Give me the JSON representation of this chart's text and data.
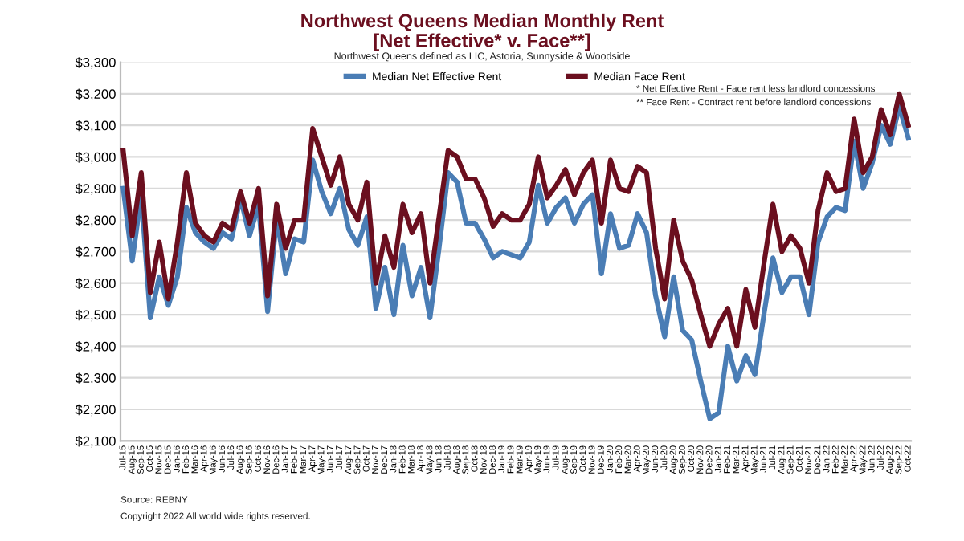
{
  "chart_data": {
    "type": "line",
    "title": "Northwest Queens Median Monthly Rent\n[Net Effective* v. Face**]",
    "subtitle": "Northwest Queens defined as LIC, Astoria, Sunnyside & Woodside",
    "categories": [
      "Jul-15",
      "Aug-15",
      "Sep-15",
      "Oct-15",
      "Nov-15",
      "Dec-15",
      "Jan-16",
      "Feb-16",
      "Mar-16",
      "Apr-16",
      "May-16",
      "Jun-16",
      "Jul-16",
      "Aug-16",
      "Sep-16",
      "Oct-16",
      "Nov-16",
      "Dec-16",
      "Jan-17",
      "Feb-17",
      "Mar-17",
      "Apr-17",
      "May-17",
      "Jun-17",
      "Jul-17",
      "Aug-17",
      "Sep-17",
      "Oct-17",
      "Nov-17",
      "Dec-17",
      "Jan-18",
      "Feb-18",
      "Mar-18",
      "Apr-18",
      "May-18",
      "Jun-18",
      "Jul-18",
      "Aug-18",
      "Sep-18",
      "Oct-18",
      "Nov-18",
      "Dec-18",
      "Jan-19",
      "Feb-19",
      "Mar-19",
      "Apr-19",
      "May-19",
      "Jun-19",
      "Jul-19",
      "Aug-19",
      "Sep-19",
      "Oct-19",
      "Nov-19",
      "Dec-19",
      "Jan-20",
      "Feb-20",
      "Mar-20",
      "Apr-20",
      "May-20",
      "Jun-20",
      "Jul-20",
      "Aug-20",
      "Sep-20",
      "Oct-20",
      "Nov-20",
      "Dec-20",
      "Jan-21",
      "Feb-21",
      "Mar-21",
      "Apr-21",
      "May-21",
      "Jun-21",
      "Jul-21",
      "Aug-21",
      "Sep-21",
      "Oct-21",
      "Nov-21",
      "Dec-21",
      "Jan-22",
      "Feb-22",
      "Mar-22",
      "Apr-22",
      "May-22",
      "Jun-22",
      "Jul-22",
      "Aug-22",
      "Sep-22",
      "Oct-22"
    ],
    "series": [
      {
        "name": "Median Net Effective Rent",
        "color": "#4a7db5",
        "values": [
          2900,
          2670,
          2880,
          2490,
          2620,
          2530,
          2620,
          2840,
          2760,
          2730,
          2710,
          2760,
          2740,
          2870,
          2750,
          2850,
          2510,
          2810,
          2630,
          2740,
          2730,
          2990,
          2890,
          2820,
          2900,
          2770,
          2720,
          2810,
          2520,
          2650,
          2500,
          2720,
          2560,
          2650,
          2490,
          2710,
          2950,
          2920,
          2790,
          2790,
          2740,
          2680,
          2700,
          2690,
          2680,
          2730,
          2910,
          2790,
          2840,
          2870,
          2790,
          2850,
          2880,
          2630,
          2820,
          2710,
          2720,
          2820,
          2760,
          2560,
          2430,
          2620,
          2450,
          2420,
          2290,
          2170,
          2190,
          2400,
          2290,
          2370,
          2310,
          2500,
          2680,
          2570,
          2620,
          2620,
          2500,
          2730,
          2810,
          2840,
          2830,
          3050,
          2900,
          2980,
          3100,
          3040,
          3160,
          3060
        ]
      },
      {
        "name": "Median Face Rent",
        "color": "#6b0f1f",
        "values": [
          3020,
          2750,
          2950,
          2570,
          2730,
          2550,
          2730,
          2950,
          2790,
          2750,
          2730,
          2790,
          2770,
          2890,
          2790,
          2900,
          2560,
          2850,
          2710,
          2800,
          2800,
          3090,
          3000,
          2910,
          3000,
          2850,
          2800,
          2920,
          2600,
          2750,
          2650,
          2850,
          2760,
          2820,
          2600,
          2810,
          3020,
          3000,
          2930,
          2930,
          2870,
          2780,
          2820,
          2800,
          2800,
          2850,
          3000,
          2870,
          2910,
          2960,
          2880,
          2950,
          2990,
          2790,
          2990,
          2900,
          2890,
          2970,
          2950,
          2710,
          2550,
          2800,
          2670,
          2610,
          2500,
          2400,
          2470,
          2520,
          2400,
          2580,
          2460,
          2660,
          2850,
          2700,
          2750,
          2710,
          2600,
          2830,
          2950,
          2890,
          2900,
          3120,
          2950,
          3000,
          3150,
          3070,
          3200,
          3100
        ]
      }
    ],
    "ylim": [
      2100,
      3300
    ],
    "yticks": [
      {
        "value": 2100,
        "label": "$2,100"
      },
      {
        "value": 2200,
        "label": "$2,200"
      },
      {
        "value": 2300,
        "label": "$2,300"
      },
      {
        "value": 2400,
        "label": "$2,400"
      },
      {
        "value": 2500,
        "label": "$2,500"
      },
      {
        "value": 2600,
        "label": "$2,600"
      },
      {
        "value": 2700,
        "label": "$2,700"
      },
      {
        "value": 2800,
        "label": "$2,800"
      },
      {
        "value": 2900,
        "label": "$2,900"
      },
      {
        "value": 3000,
        "label": "$3,000"
      },
      {
        "value": 3100,
        "label": "$3,100"
      },
      {
        "value": 3200,
        "label": "$3,200"
      },
      {
        "value": 3300,
        "label": "$3,300"
      }
    ],
    "grid": "y",
    "legend": "top",
    "marker": "none",
    "line_style": "solid",
    "annotations": [
      "* Net Effective Rent - Face rent less landlord concessions",
      "** Face Rent - Contract rent before landlord concessions",
      "Source: REBNY",
      "Copyright 2022 All world wide rights reserved."
    ]
  }
}
